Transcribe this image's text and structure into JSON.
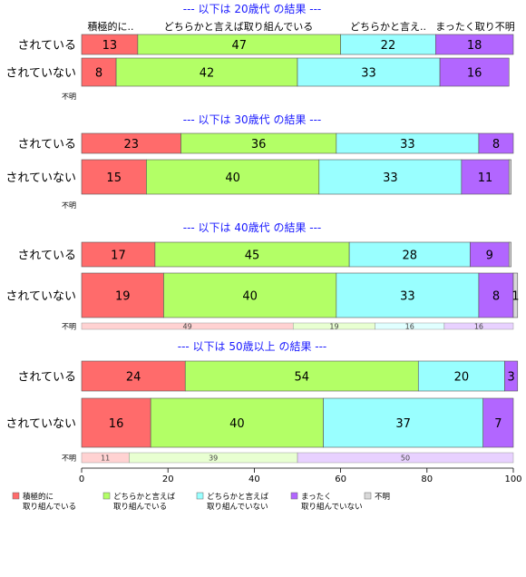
{
  "chart_data": {
    "type": "bar",
    "orientation": "horizontal",
    "stacked": true,
    "xlim": [
      0,
      100
    ],
    "x_ticks": [
      0,
      20,
      40,
      60,
      80,
      100
    ],
    "colors": [
      "#FF6B6B",
      "#B3FF66",
      "#99FFFF",
      "#B266FF",
      "#D9D9D9"
    ],
    "top_column_labels": [
      "積極的に..",
      "どちらかと言えば取り組んでいる",
      "どちらかと言え..",
      "まったく取り不明"
    ],
    "legend": {
      "placement": "bottom",
      "items": [
        {
          "line1": "積極的に",
          "line2": "取り組んでいる"
        },
        {
          "line1": "どちらかと言えば",
          "line2": "取り組んでいる"
        },
        {
          "line1": "どちらかと言えば",
          "line2": "取り組んでいない"
        },
        {
          "line1": "まったく",
          "line2": "取り組んでいない"
        },
        {
          "line1": "不明",
          "line2": ""
        }
      ]
    },
    "panels": [
      {
        "title": "--- 以下は 20歳代 の結果 ---",
        "rows": [
          {
            "label": "されている",
            "values": [
              13,
              47,
              22,
              18,
              0
            ],
            "labels": [
              "13",
              "47",
              "22",
              "18",
              ""
            ]
          },
          {
            "label": "されていない",
            "values": [
              8,
              42,
              33,
              16,
              0
            ],
            "labels": [
              "8",
              "42",
              "33",
              "16",
              ""
            ]
          }
        ],
        "unknown": {
          "label": "不明",
          "values": [
            0,
            0,
            0,
            0,
            0
          ],
          "labels": [
            "",
            "",
            "",
            "",
            ""
          ]
        }
      },
      {
        "title": "--- 以下は 30歳代 の結果 ---",
        "rows": [
          {
            "label": "されている",
            "values": [
              23,
              36,
              33,
              8,
              0
            ],
            "labels": [
              "23",
              "36",
              "33",
              "8",
              ""
            ]
          },
          {
            "label": "されていない",
            "values": [
              15,
              40,
              33,
              11,
              0.5
            ],
            "labels": [
              "15",
              "40",
              "33",
              "11",
              ""
            ]
          }
        ],
        "unknown": {
          "label": "不明",
          "values": [
            0,
            0,
            0,
            0,
            0
          ],
          "labels": [
            "",
            "",
            "",
            "",
            ""
          ]
        }
      },
      {
        "title": "--- 以下は 40歳代 の結果 ---",
        "rows": [
          {
            "label": "されている",
            "values": [
              17,
              45,
              28,
              9,
              0.5
            ],
            "labels": [
              "17",
              "45",
              "28",
              "9",
              ""
            ]
          },
          {
            "label": "されていない",
            "values": [
              19,
              40,
              33,
              8,
              1
            ],
            "labels": [
              "19",
              "40",
              "33",
              "8",
              "1"
            ]
          }
        ],
        "unknown": {
          "label": "不明",
          "values": [
            49,
            19,
            16,
            16,
            0
          ],
          "labels": [
            "49",
            "19",
            "16",
            "16",
            ""
          ]
        }
      },
      {
        "title": "--- 以下は 50歳以上 の結果 ---",
        "rows": [
          {
            "label": "されている",
            "values": [
              24,
              54,
              20,
              3,
              0
            ],
            "labels": [
              "24",
              "54",
              "20",
              "3",
              ""
            ]
          },
          {
            "label": "されていない",
            "values": [
              16,
              40,
              37,
              7,
              0
            ],
            "labels": [
              "16",
              "40",
              "37",
              "7",
              ""
            ]
          }
        ],
        "unknown": {
          "label": "不明",
          "values": [
            11,
            39,
            0,
            50,
            0
          ],
          "labels": [
            "11",
            "39",
            "",
            "50",
            ""
          ]
        }
      }
    ]
  }
}
